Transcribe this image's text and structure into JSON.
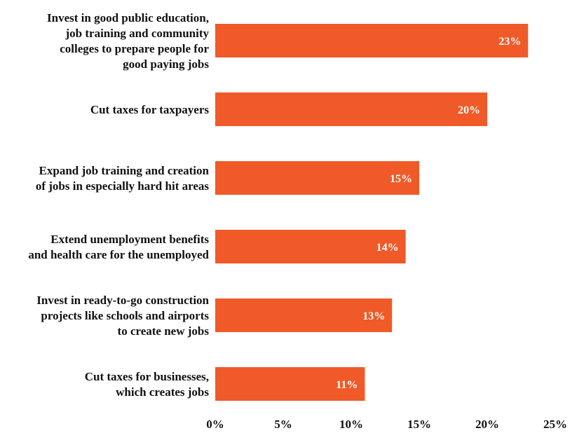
{
  "chart_data": {
    "type": "bar",
    "orientation": "horizontal",
    "categories": [
      "Invest in good public education, job training and community colleges to prepare people for good paying jobs",
      "Cut taxes for taxpayers",
      "Expand job training and creation of jobs in especially hard hit areas",
      "Extend unemployment benefits and health care for the unemployed",
      "Invest in ready-to-go construction projects like schools and airports to create new jobs",
      "Cut taxes for businesses, which creates jobs"
    ],
    "category_lines": [
      [
        "Invest in good public education,",
        "job training and community",
        "colleges to prepare people for",
        "good paying jobs"
      ],
      [
        "Cut taxes for taxpayers"
      ],
      [
        "Expand job training and creation",
        "of jobs in especially hard hit areas"
      ],
      [
        "Extend unemployment benefits",
        "and health care for the unemployed"
      ],
      [
        "Invest in ready-to-go construction",
        "projects like schools and airports",
        "to create new jobs"
      ],
      [
        "Cut taxes for businesses,",
        "which creates jobs"
      ]
    ],
    "values": [
      23,
      20,
      15,
      14,
      13,
      11
    ],
    "data_labels": [
      "23%",
      "20%",
      "15%",
      "14%",
      "13%",
      "11%"
    ],
    "x_ticks": [
      0,
      5,
      10,
      15,
      20,
      25
    ],
    "x_tick_labels": [
      "0%",
      "5%",
      "10%",
      "15%",
      "20%",
      "25%"
    ],
    "xlim": [
      0,
      25
    ],
    "grid": false,
    "legend": "none",
    "bar_color": "#f05a28",
    "label_color": "#ffffff",
    "text_color": "#111111"
  }
}
